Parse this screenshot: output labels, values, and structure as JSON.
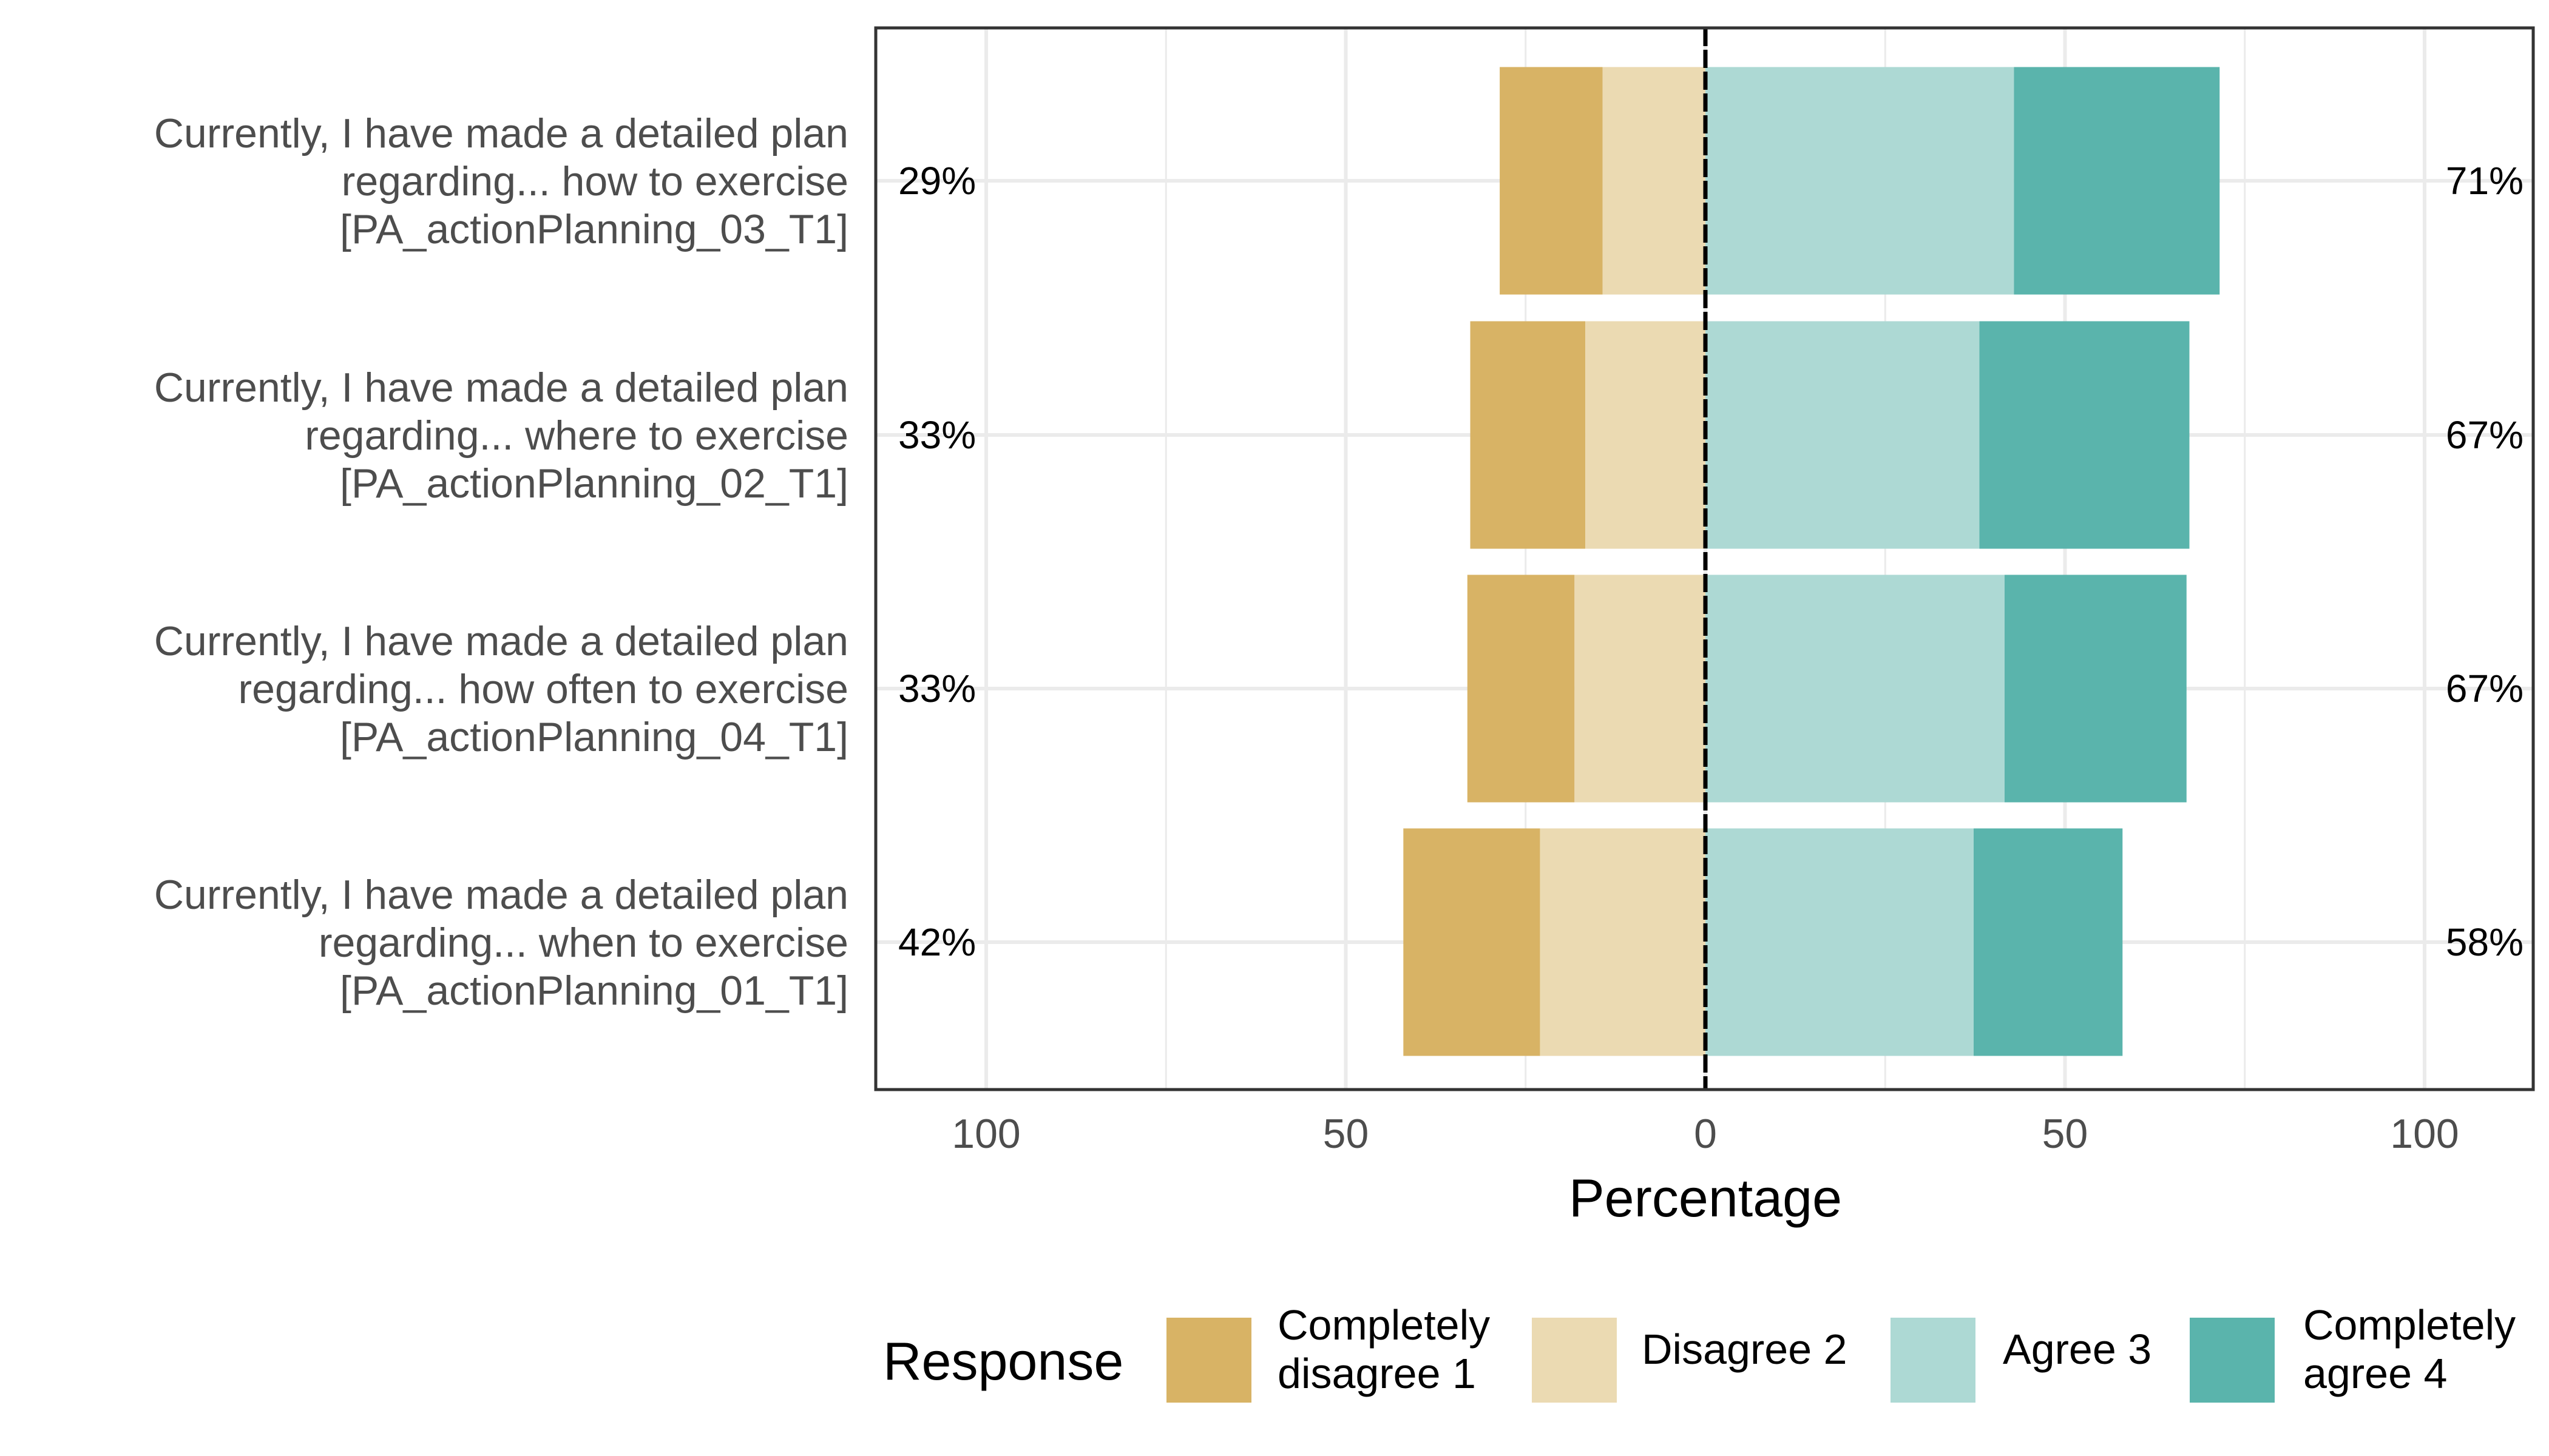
{
  "chart_data": {
    "type": "bar",
    "orientation": "horizontal-diverging",
    "xlabel": "Percentage",
    "x_ticks": [
      {
        "value": -100,
        "label": "100"
      },
      {
        "value": -50,
        "label": "50"
      },
      {
        "value": 0,
        "label": "0"
      },
      {
        "value": 50,
        "label": "50"
      },
      {
        "value": 100,
        "label": "100"
      }
    ],
    "xlim": [
      -100,
      100
    ],
    "grid": true,
    "legend": {
      "title": "Response",
      "position": "bottom",
      "entries": [
        {
          "label_lines": [
            "Completely",
            "disagree 1"
          ],
          "color": "#D8B365"
        },
        {
          "label_lines": [
            "Disagree 2"
          ],
          "color": "#EBDAB2"
        },
        {
          "label_lines": [
            "Agree 3"
          ],
          "color": "#ADD9D4"
        },
        {
          "label_lines": [
            "Completely",
            "agree 4"
          ],
          "color": "#5AB4AC"
        }
      ]
    },
    "items": [
      {
        "label_lines": [
          "Currently, I have made a detailed plan",
          "regarding... how to exercise",
          "[PA_actionPlanning_03_T1]"
        ],
        "low_label": "29%",
        "high_label": "71%",
        "values": {
          "completely_disagree": 14.3,
          "disagree": 14.3,
          "agree": 42.9,
          "completely_agree": 28.6
        }
      },
      {
        "label_lines": [
          "Currently, I have made a detailed plan",
          "regarding... where to exercise",
          "[PA_actionPlanning_02_T1]"
        ],
        "low_label": "33%",
        "high_label": "67%",
        "values": {
          "completely_disagree": 16.0,
          "disagree": 16.7,
          "agree": 38.1,
          "completely_agree": 29.2
        }
      },
      {
        "label_lines": [
          "Currently, I have made a detailed plan",
          "regarding... how often to exercise",
          "[PA_actionPlanning_04_T1]"
        ],
        "low_label": "33%",
        "high_label": "67%",
        "values": {
          "completely_disagree": 14.9,
          "disagree": 18.2,
          "agree": 41.6,
          "completely_agree": 25.3
        }
      },
      {
        "label_lines": [
          "Currently, I have made a detailed plan",
          "regarding... when to exercise",
          "[PA_actionPlanning_01_T1]"
        ],
        "low_label": "42%",
        "high_label": "58%",
        "values": {
          "completely_disagree": 19.0,
          "disagree": 23.0,
          "agree": 37.3,
          "completely_agree": 20.7
        }
      }
    ]
  }
}
